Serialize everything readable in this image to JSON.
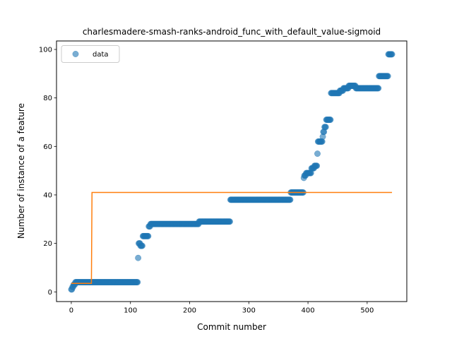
{
  "chart_data": {
    "type": "scatter",
    "title": "charlesmadere-smash-ranks-android_func_with_default_value-sigmoid",
    "xlabel": "Commit number",
    "ylabel": "Number of instance of a feature",
    "xlim": [
      -25,
      567
    ],
    "ylim": [
      -4,
      103.5
    ],
    "xticks": [
      0,
      100,
      200,
      300,
      400,
      500
    ],
    "yticks": [
      0,
      20,
      40,
      60,
      80,
      100
    ],
    "grid": false,
    "legend": {
      "placement": "top-left",
      "entries": [
        "data"
      ]
    },
    "colors": {
      "data": "#1f77b4",
      "fit": "#ff7f0e"
    },
    "series": [
      {
        "name": "data",
        "kind": "scatter",
        "segments": [
          [
            0,
            1,
            1
          ],
          [
            2,
            3,
            2
          ],
          [
            4,
            6,
            3
          ],
          [
            7,
            12,
            4
          ],
          [
            13,
            112,
            4
          ],
          [
            113,
            113,
            14
          ],
          [
            114,
            116,
            20
          ],
          [
            117,
            120,
            19
          ],
          [
            121,
            130,
            23
          ],
          [
            131,
            133,
            27
          ],
          [
            134,
            215,
            28
          ],
          [
            216,
            268,
            29
          ],
          [
            269,
            370,
            38
          ],
          [
            371,
            392,
            41
          ],
          [
            393,
            393,
            47
          ],
          [
            394,
            396,
            48
          ],
          [
            397,
            405,
            49
          ],
          [
            406,
            410,
            51
          ],
          [
            411,
            415,
            52
          ],
          [
            416,
            416,
            57
          ],
          [
            417,
            424,
            62
          ],
          [
            425,
            425,
            64
          ],
          [
            426,
            427,
            66
          ],
          [
            428,
            430,
            68
          ],
          [
            431,
            438,
            71
          ],
          [
            439,
            453,
            82
          ],
          [
            454,
            459,
            83
          ],
          [
            460,
            468,
            84
          ],
          [
            469,
            471,
            85
          ],
          [
            472,
            480,
            85
          ],
          [
            481,
            519,
            84
          ],
          [
            520,
            535,
            89
          ],
          [
            536,
            542,
            98
          ]
        ]
      },
      {
        "name": "",
        "kind": "line",
        "points": [
          [
            0,
            3.5
          ],
          [
            34,
            3.5
          ],
          [
            35,
            41
          ],
          [
            542,
            41
          ]
        ]
      }
    ]
  }
}
